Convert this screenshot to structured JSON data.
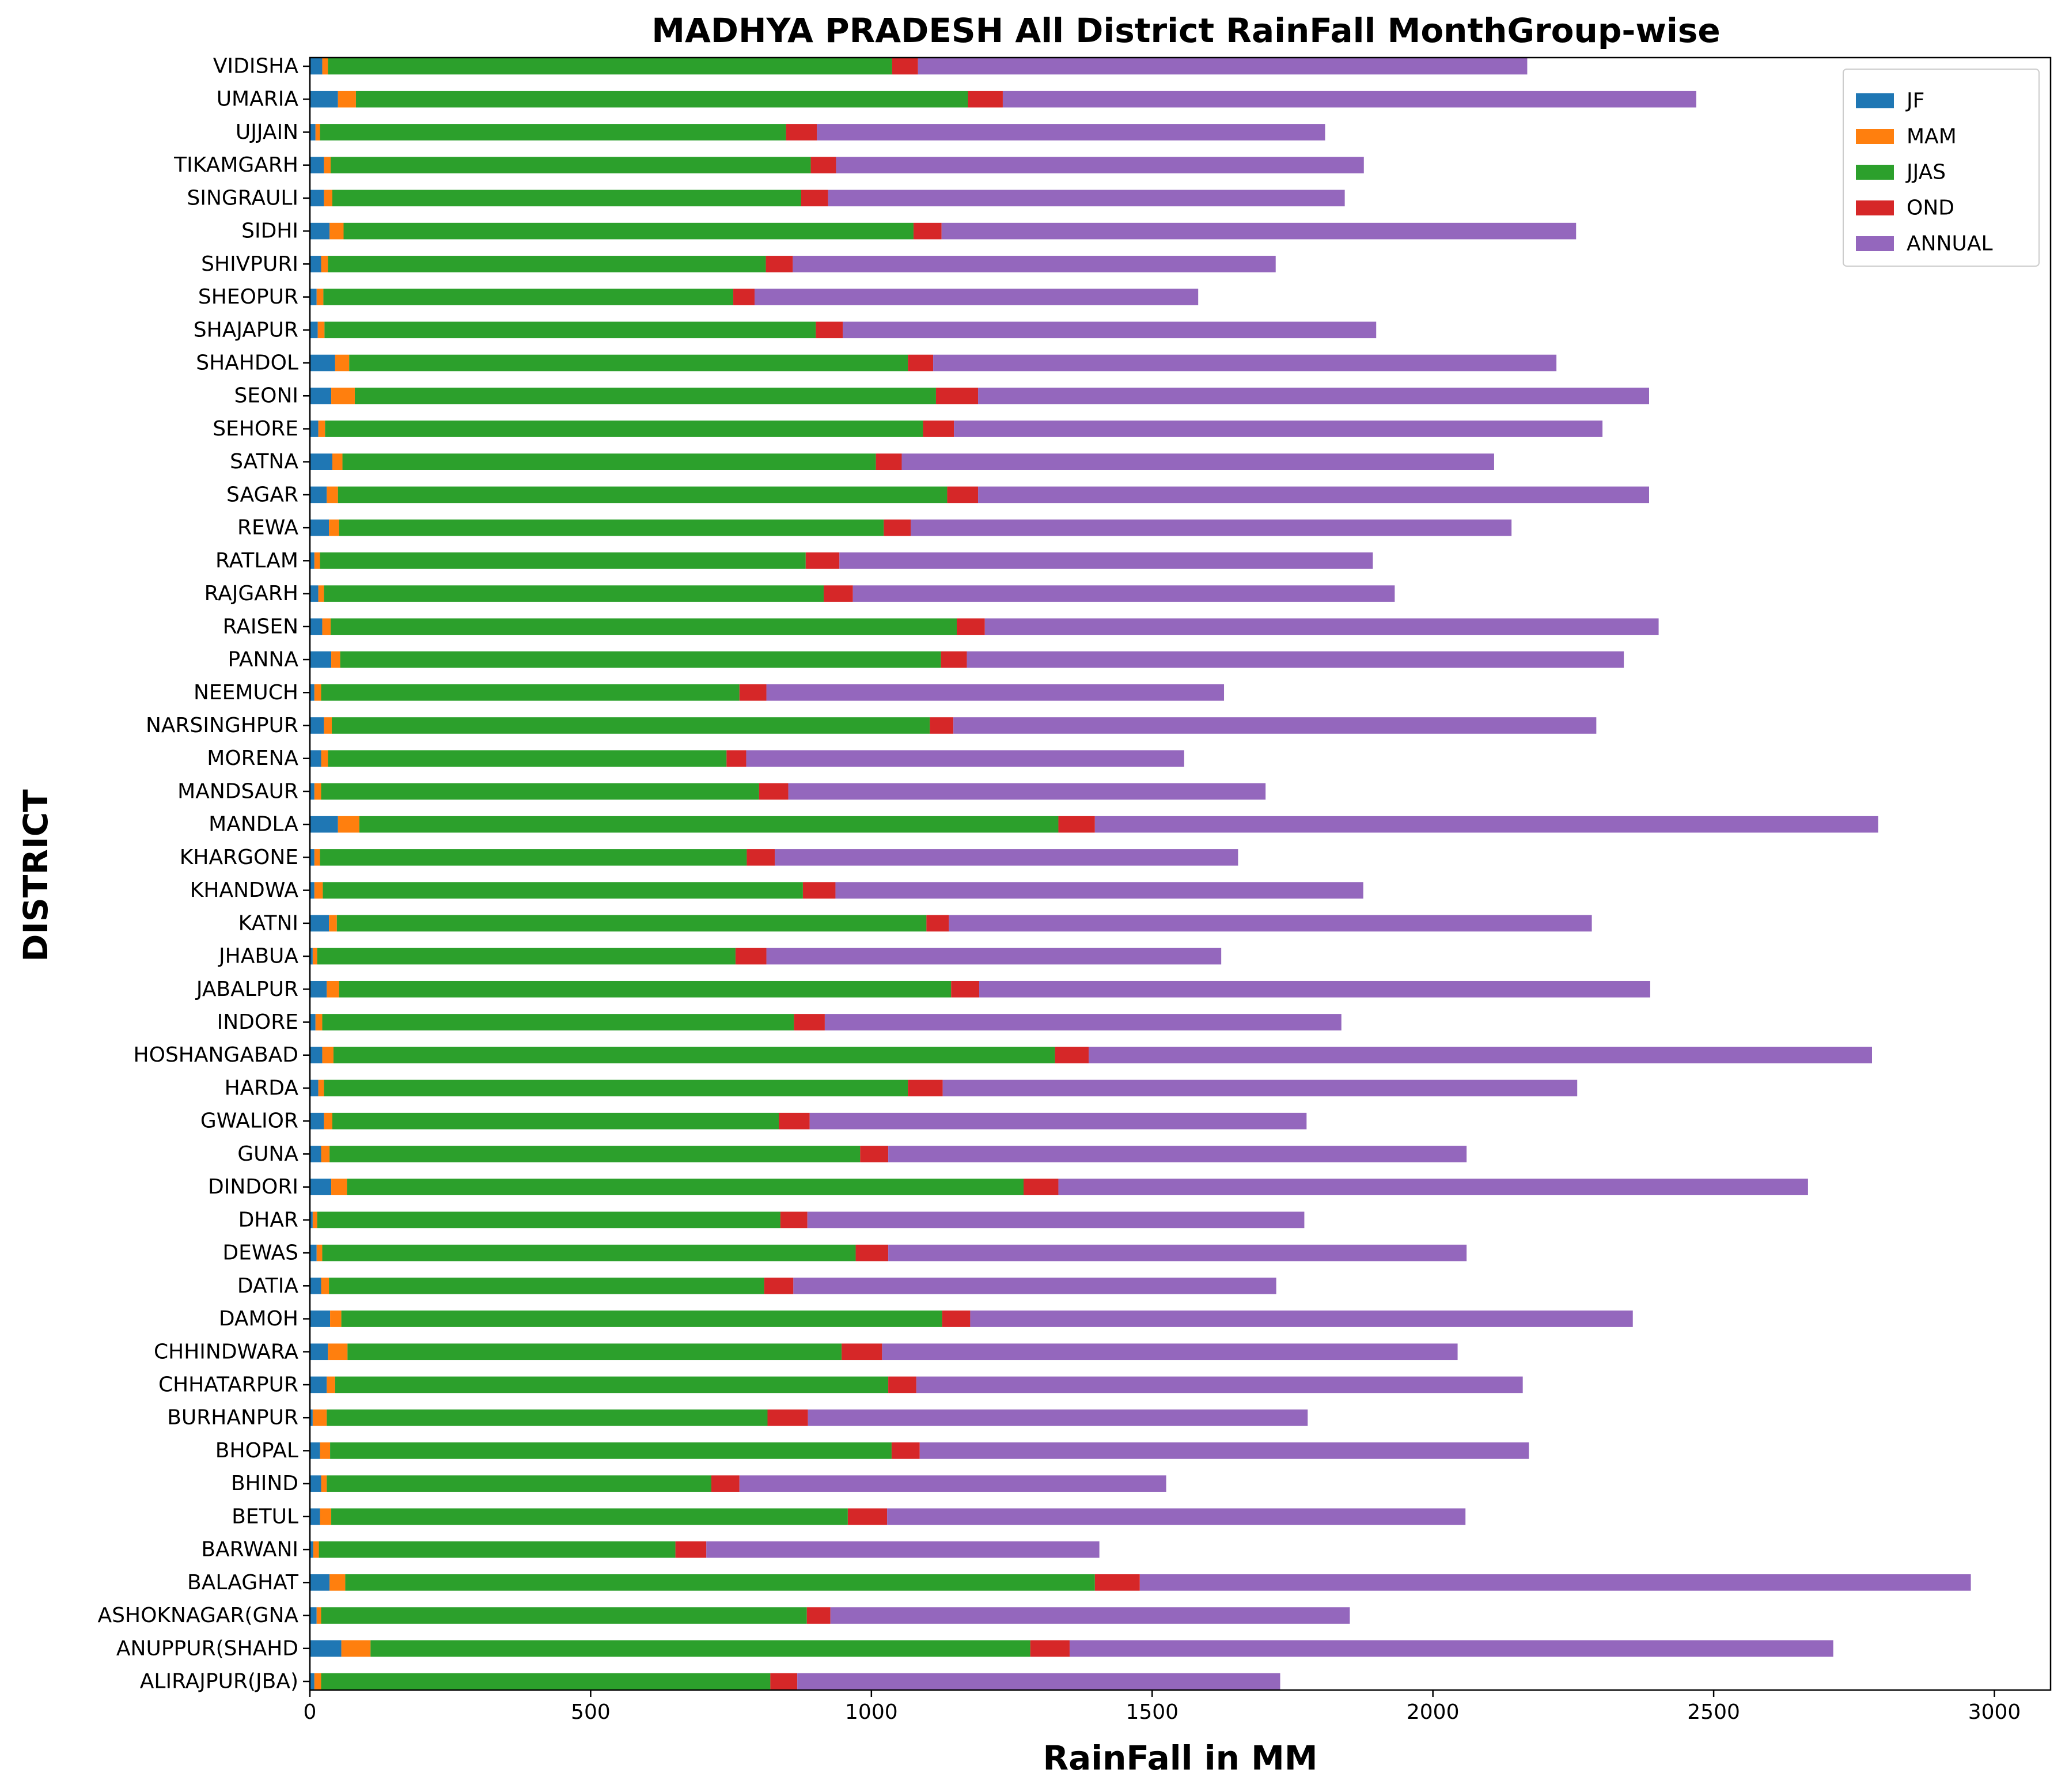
{
  "chart_data": {
    "type": "bar",
    "orientation": "horizontal",
    "stacked": true,
    "title": "MADHYA PRADESH All District RainFall MonthGroup-wise",
    "xlabel": "RainFall in MM",
    "ylabel": "DISTRICT",
    "xlim": [
      0,
      3100
    ],
    "xticks": [
      0,
      500,
      1000,
      1500,
      2000,
      2500,
      3000
    ],
    "grid": false,
    "legend_position": "top-right",
    "categories": [
      "ALIRAJPUR(JBA)",
      "ANUPPUR(SHAHD",
      "ASHOKNAGAR(GNA",
      "BALAGHAT",
      "BARWANI",
      "BETUL",
      "BHIND",
      "BHOPAL",
      "BURHANPUR",
      "CHHATARPUR",
      "CHHINDWARA",
      "DAMOH",
      "DATIA",
      "DEWAS",
      "DHAR",
      "DINDORI",
      "GUNA",
      "GWALIOR",
      "HARDA",
      "HOSHANGABAD",
      "INDORE",
      "JABALPUR",
      "JHABUA",
      "KATNI",
      "KHANDWA",
      "KHARGONE",
      "MANDLA",
      "MANDSAUR",
      "MORENA",
      "NARSINGHPUR",
      "NEEMUCH",
      "PANNA",
      "RAISEN",
      "RAJGARH",
      "RATLAM",
      "REWA",
      "SAGAR",
      "SATNA",
      "SEHORE",
      "SEONI",
      "SHAHDOL",
      "SHAJAPUR",
      "SHEOPUR",
      "SHIVPURI",
      "SIDHI",
      "SINGRAULI",
      "TIKAMGARH",
      "UJJAIN",
      "UMARIA",
      "VIDISHA"
    ],
    "series": [
      {
        "name": "JF",
        "color": "#1f77b4",
        "values": [
          8,
          56,
          12,
          35,
          6,
          18,
          20,
          18,
          5,
          30,
          32,
          36,
          20,
          12,
          5,
          38,
          20,
          25,
          15,
          22,
          10,
          30,
          5,
          34,
          8,
          8,
          50,
          8,
          20,
          25,
          8,
          38,
          22,
          15,
          8,
          34,
          30,
          40,
          15,
          38,
          45,
          14,
          12,
          20,
          35,
          25,
          25,
          10,
          50,
          22
        ]
      },
      {
        "name": "MAM",
        "color": "#ff7f0e",
        "values": [
          12,
          52,
          8,
          28,
          10,
          20,
          10,
          18,
          25,
          15,
          35,
          20,
          14,
          10,
          8,
          28,
          15,
          15,
          10,
          20,
          12,
          22,
          8,
          14,
          15,
          10,
          38,
          12,
          12,
          14,
          12,
          16,
          15,
          10,
          10,
          18,
          20,
          18,
          12,
          42,
          25,
          12,
          12,
          12,
          25,
          15,
          12,
          8,
          32,
          10
        ]
      },
      {
        "name": "JJAS",
        "color": "#2ca02c",
        "values": [
          800,
          1175,
          865,
          1335,
          635,
          920,
          685,
          1000,
          785,
          985,
          880,
          1070,
          775,
          950,
          825,
          1205,
          945,
          795,
          1040,
          1285,
          840,
          1090,
          745,
          1050,
          855,
          760,
          1245,
          780,
          710,
          1065,
          745,
          1070,
          1115,
          890,
          865,
          970,
          1085,
          950,
          1065,
          1035,
          995,
          875,
          730,
          780,
          1015,
          835,
          855,
          830,
          1090,
          1005
        ]
      },
      {
        "name": "OND",
        "color": "#d62728",
        "values": [
          48,
          70,
          42,
          80,
          55,
          70,
          50,
          50,
          72,
          50,
          72,
          50,
          52,
          58,
          48,
          62,
          50,
          55,
          62,
          60,
          55,
          50,
          55,
          40,
          58,
          50,
          65,
          52,
          35,
          42,
          48,
          46,
          50,
          52,
          60,
          48,
          55,
          46,
          55,
          75,
          45,
          48,
          38,
          48,
          50,
          48,
          45,
          55,
          62,
          46
        ]
      },
      {
        "name": "ANNUAL",
        "color": "#9467bd",
        "values": [
          860,
          1360,
          925,
          1480,
          700,
          1030,
          760,
          1085,
          890,
          1080,
          1025,
          1180,
          860,
          1030,
          885,
          1335,
          1030,
          885,
          1130,
          1395,
          920,
          1195,
          810,
          1145,
          940,
          825,
          1395,
          850,
          780,
          1145,
          815,
          1170,
          1200,
          965,
          950,
          1070,
          1195,
          1055,
          1155,
          1195,
          1110,
          950,
          790,
          860,
          1130,
          920,
          940,
          905,
          1235,
          1085
        ]
      }
    ]
  }
}
